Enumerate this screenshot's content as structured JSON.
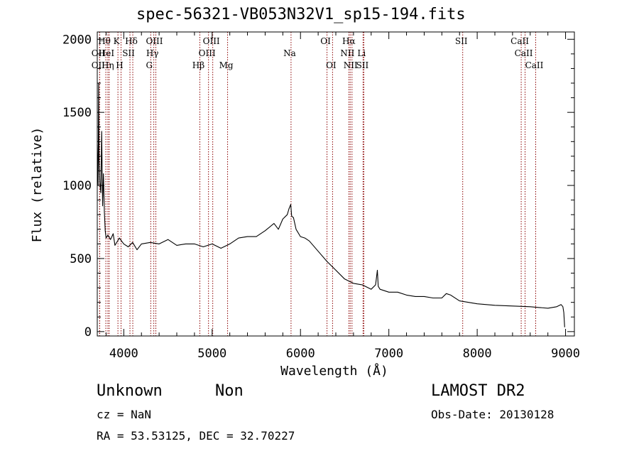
{
  "chart_data": {
    "type": "line",
    "title": "spec-56321-VB053N32V1_sp15-194.fits",
    "xlabel": "Wavelength (Å)",
    "ylabel": "Flux (relative)",
    "xlim": [
      3700,
      9100
    ],
    "ylim": [
      -30,
      2050
    ],
    "x_ticks": [
      4000,
      5000,
      6000,
      7000,
      8000,
      9000
    ],
    "y_ticks": [
      0,
      500,
      1000,
      1500,
      2000
    ],
    "grid": false,
    "colors": {
      "spectrum": "#000000",
      "line_markers": "#8b0000"
    },
    "spectrum": {
      "x": [
        3700,
        3710,
        3715,
        3720,
        3730,
        3740,
        3750,
        3760,
        3770,
        3780,
        3790,
        3800,
        3820,
        3850,
        3880,
        3900,
        3950,
        4000,
        4050,
        4100,
        4150,
        4200,
        4300,
        4400,
        4500,
        4600,
        4700,
        4800,
        4900,
        5000,
        5100,
        5200,
        5300,
        5400,
        5500,
        5600,
        5700,
        5750,
        5800,
        5850,
        5870,
        5890,
        5900,
        5920,
        5950,
        6000,
        6050,
        6100,
        6200,
        6300,
        6400,
        6500,
        6600,
        6700,
        6800,
        6850,
        6870,
        6880,
        6900,
        7000,
        7100,
        7200,
        7300,
        7400,
        7500,
        7600,
        7650,
        7700,
        7800,
        8000,
        8200,
        8400,
        8600,
        8700,
        8800,
        8900,
        8950,
        8970,
        8980,
        8990
      ],
      "y": [
        1280,
        1000,
        1700,
        1180,
        1020,
        950,
        1370,
        860,
        1080,
        820,
        690,
        640,
        660,
        630,
        670,
        590,
        640,
        600,
        580,
        610,
        560,
        600,
        610,
        600,
        630,
        590,
        600,
        600,
        580,
        600,
        570,
        600,
        640,
        650,
        650,
        690,
        740,
        700,
        770,
        800,
        840,
        870,
        790,
        780,
        700,
        650,
        640,
        620,
        550,
        480,
        420,
        360,
        330,
        320,
        290,
        320,
        420,
        310,
        290,
        270,
        270,
        250,
        240,
        240,
        230,
        230,
        260,
        250,
        210,
        190,
        180,
        175,
        170,
        165,
        160,
        170,
        185,
        170,
        130,
        30
      ]
    },
    "lines": [
      {
        "label": "Hθ",
        "x": 3797,
        "row": 0
      },
      {
        "label": "K",
        "x": 3934,
        "row": 0
      },
      {
        "label": "Hδ",
        "x": 4102,
        "row": 0
      },
      {
        "label": "OIII",
        "x": 4363,
        "row": 0
      },
      {
        "label": "OIII",
        "x": 5007,
        "row": 0
      },
      {
        "label": "OI",
        "x": 6300,
        "row": 0
      },
      {
        "label": "Hα",
        "x": 6563,
        "row": 0
      },
      {
        "label": "SII",
        "x": 7836,
        "row": 0
      },
      {
        "label": "CaII",
        "x": 8498,
        "row": 0
      },
      {
        "label": "OII",
        "x": 3727,
        "row": 1
      },
      {
        "label": "HeI",
        "x": 3820,
        "row": 1
      },
      {
        "label": "SII",
        "x": 4070,
        "row": 1
      },
      {
        "label": "Hγ",
        "x": 4340,
        "row": 1
      },
      {
        "label": "OIII",
        "x": 4959,
        "row": 1
      },
      {
        "label": "Na",
        "x": 5893,
        "row": 1
      },
      {
        "label": "NII",
        "x": 6548,
        "row": 1
      },
      {
        "label": "Li",
        "x": 6708,
        "row": 1
      },
      {
        "label": "CaII",
        "x": 8542,
        "row": 1
      },
      {
        "label": "OII",
        "x": 3727,
        "row": 2
      },
      {
        "label": "Hη",
        "x": 3835,
        "row": 2
      },
      {
        "label": "H",
        "x": 3969,
        "row": 2
      },
      {
        "label": "G",
        "x": 4305,
        "row": 2
      },
      {
        "label": "Hβ",
        "x": 4861,
        "row": 2
      },
      {
        "label": "Mg",
        "x": 5175,
        "row": 2
      },
      {
        "label": "OI",
        "x": 6363,
        "row": 2
      },
      {
        "label": "NII",
        "x": 6583,
        "row": 2
      },
      {
        "label": "SII",
        "x": 6717,
        "row": 2
      },
      {
        "label": "CaII",
        "x": 8662,
        "row": 2
      }
    ]
  },
  "info": {
    "class": "Unknown",
    "subclass": "Non",
    "cz": "cz = NaN",
    "radec": "RA =  53.53125, DEC =  32.70227",
    "survey": "LAMOST DR2",
    "obsdate": "Obs-Date: 20130128"
  }
}
